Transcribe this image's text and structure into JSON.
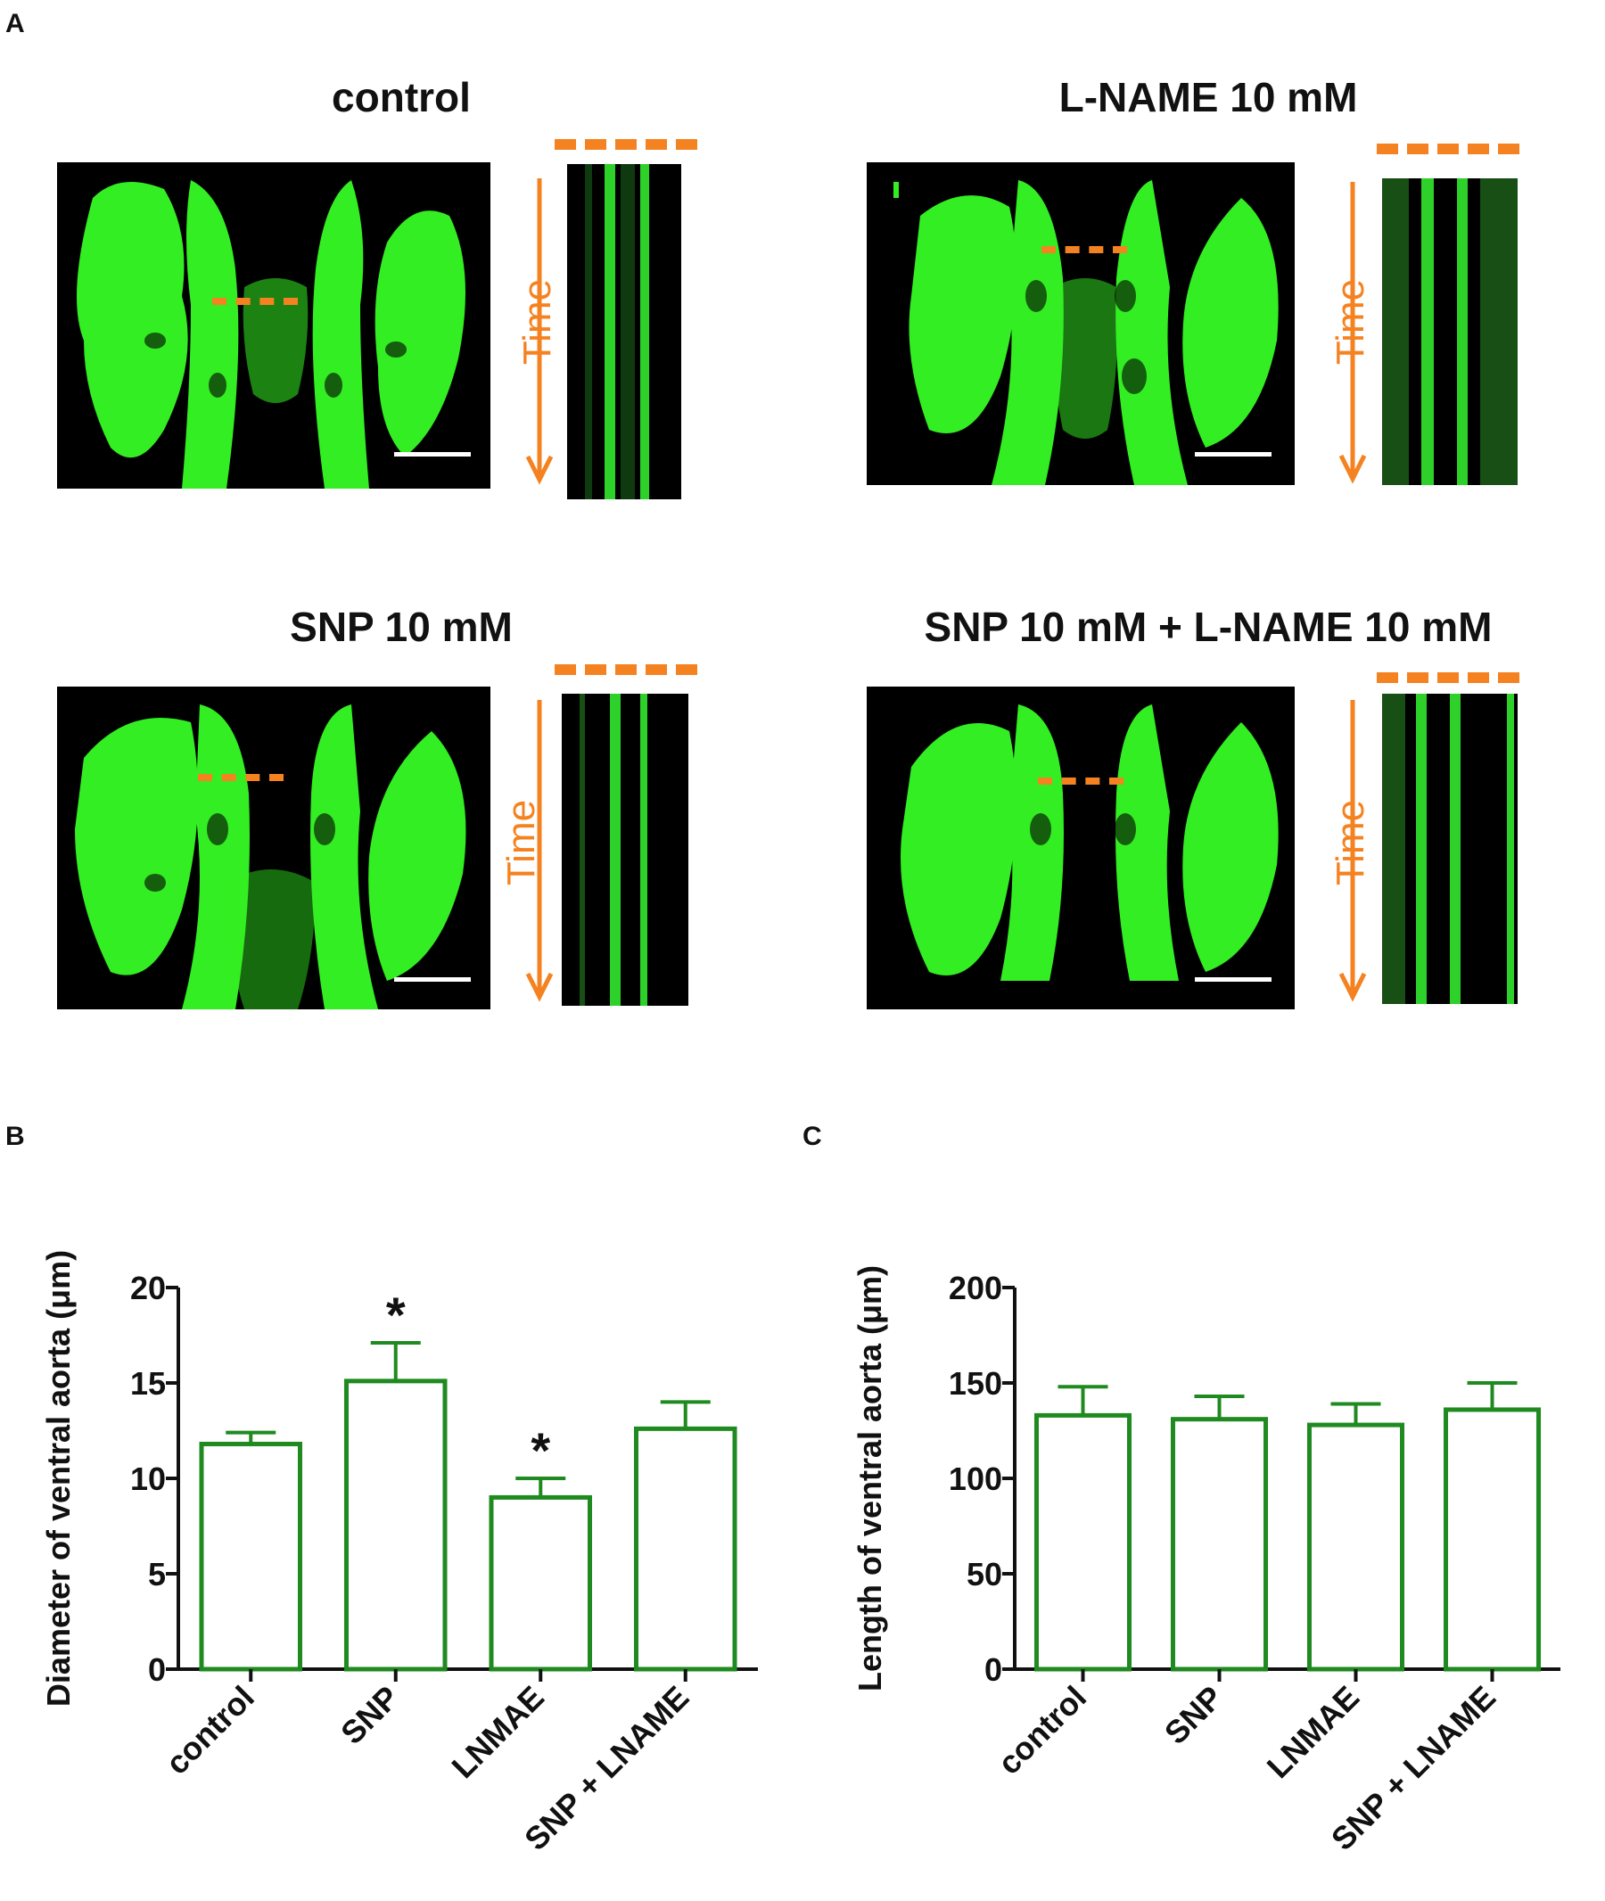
{
  "panels": {
    "a_letter": "A",
    "b_letter": "B",
    "c_letter": "C"
  },
  "images": [
    {
      "title": "control",
      "time_label": "Time"
    },
    {
      "title": "L-NAME 10 mM",
      "time_label": "Time"
    },
    {
      "title": "SNP 10 mM",
      "time_label": "Time"
    },
    {
      "title": "SNP 10 mM + L-NAME 10 mM",
      "time_label": "Time"
    }
  ],
  "colors": {
    "accent_orange": "#f58220",
    "fluorescence_green": "#33ee22",
    "bar_green": "#1f8a1f"
  },
  "chart_data": [
    {
      "type": "bar",
      "panel": "B",
      "categories": [
        "control",
        "SNP",
        "LNMAE",
        "SNP + LNAME"
      ],
      "values": [
        11.8,
        15.1,
        9.0,
        12.6
      ],
      "errors": [
        0.6,
        2.0,
        1.0,
        1.4
      ],
      "significance": [
        "",
        "*",
        "*",
        ""
      ],
      "ylabel": "Diameter of ventral aorta (μm)",
      "ylim": [
        0,
        20
      ],
      "yticks": [
        0,
        5,
        10,
        15,
        20
      ],
      "bar_style": "open"
    },
    {
      "type": "bar",
      "panel": "C",
      "categories": [
        "control",
        "SNP",
        "LNMAE",
        "SNP + LNAME"
      ],
      "values": [
        133,
        131,
        128,
        136
      ],
      "errors": [
        15,
        12,
        11,
        14
      ],
      "significance": [
        "",
        "",
        "",
        ""
      ],
      "ylabel": "Length of ventral aorta (μm)",
      "ylim": [
        0,
        200
      ],
      "yticks": [
        0,
        50,
        100,
        150,
        200
      ],
      "bar_style": "open"
    }
  ]
}
